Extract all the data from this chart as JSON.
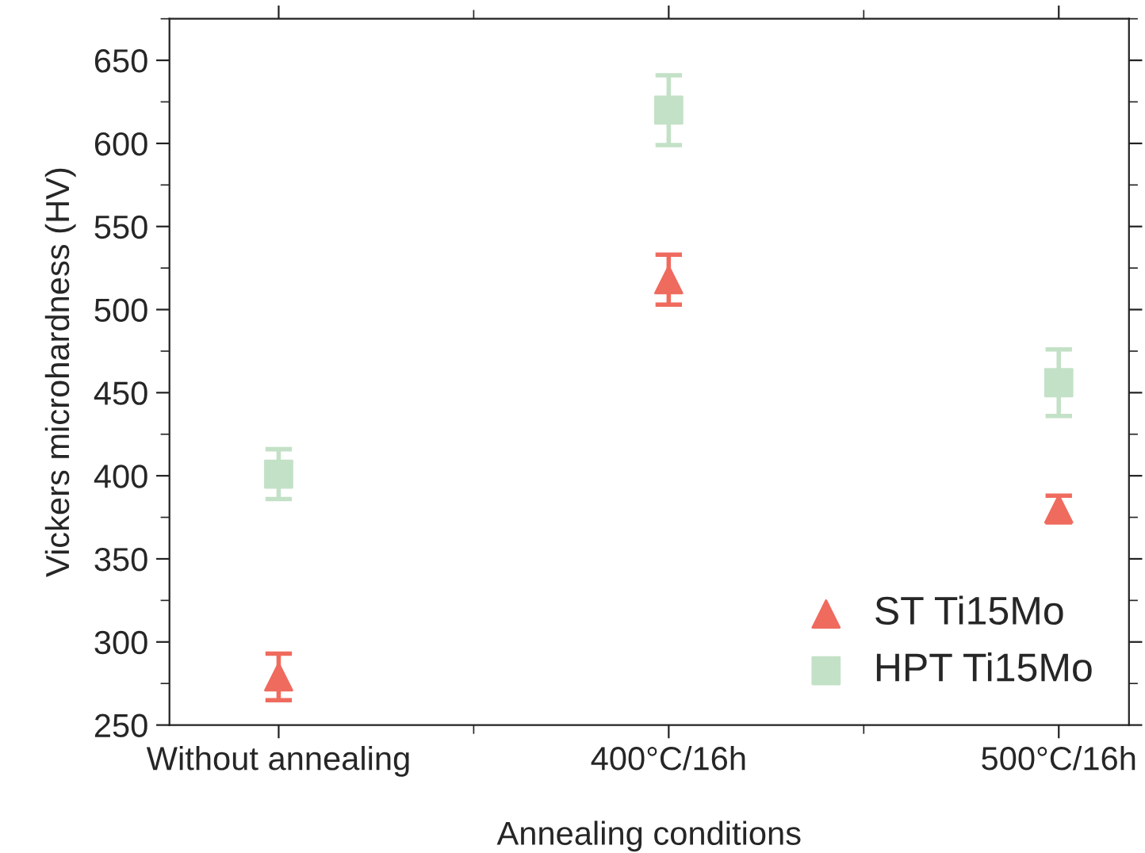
{
  "chart_data": {
    "type": "scatter",
    "xlabel": "Annealing conditions",
    "ylabel": "Vickers microhardness (HV)",
    "categories": [
      "Without annealing",
      "400°C/16h",
      "500°C/16h"
    ],
    "series": [
      {
        "name": "ST Ti15Mo",
        "color": "#ef6b5e",
        "marker": "triangle",
        "values": [
          279,
          518,
          380
        ],
        "errors": [
          14,
          15,
          8
        ]
      },
      {
        "name": "HPT Ti15Mo",
        "color": "#c3e1c7",
        "marker": "square",
        "values": [
          401,
          620,
          456
        ],
        "errors": [
          15,
          21,
          20
        ]
      }
    ],
    "ylim": [
      250,
      675
    ],
    "yticks": [
      250,
      300,
      350,
      400,
      450,
      500,
      550,
      600,
      650
    ],
    "grid": false,
    "legend": "bottom right"
  }
}
